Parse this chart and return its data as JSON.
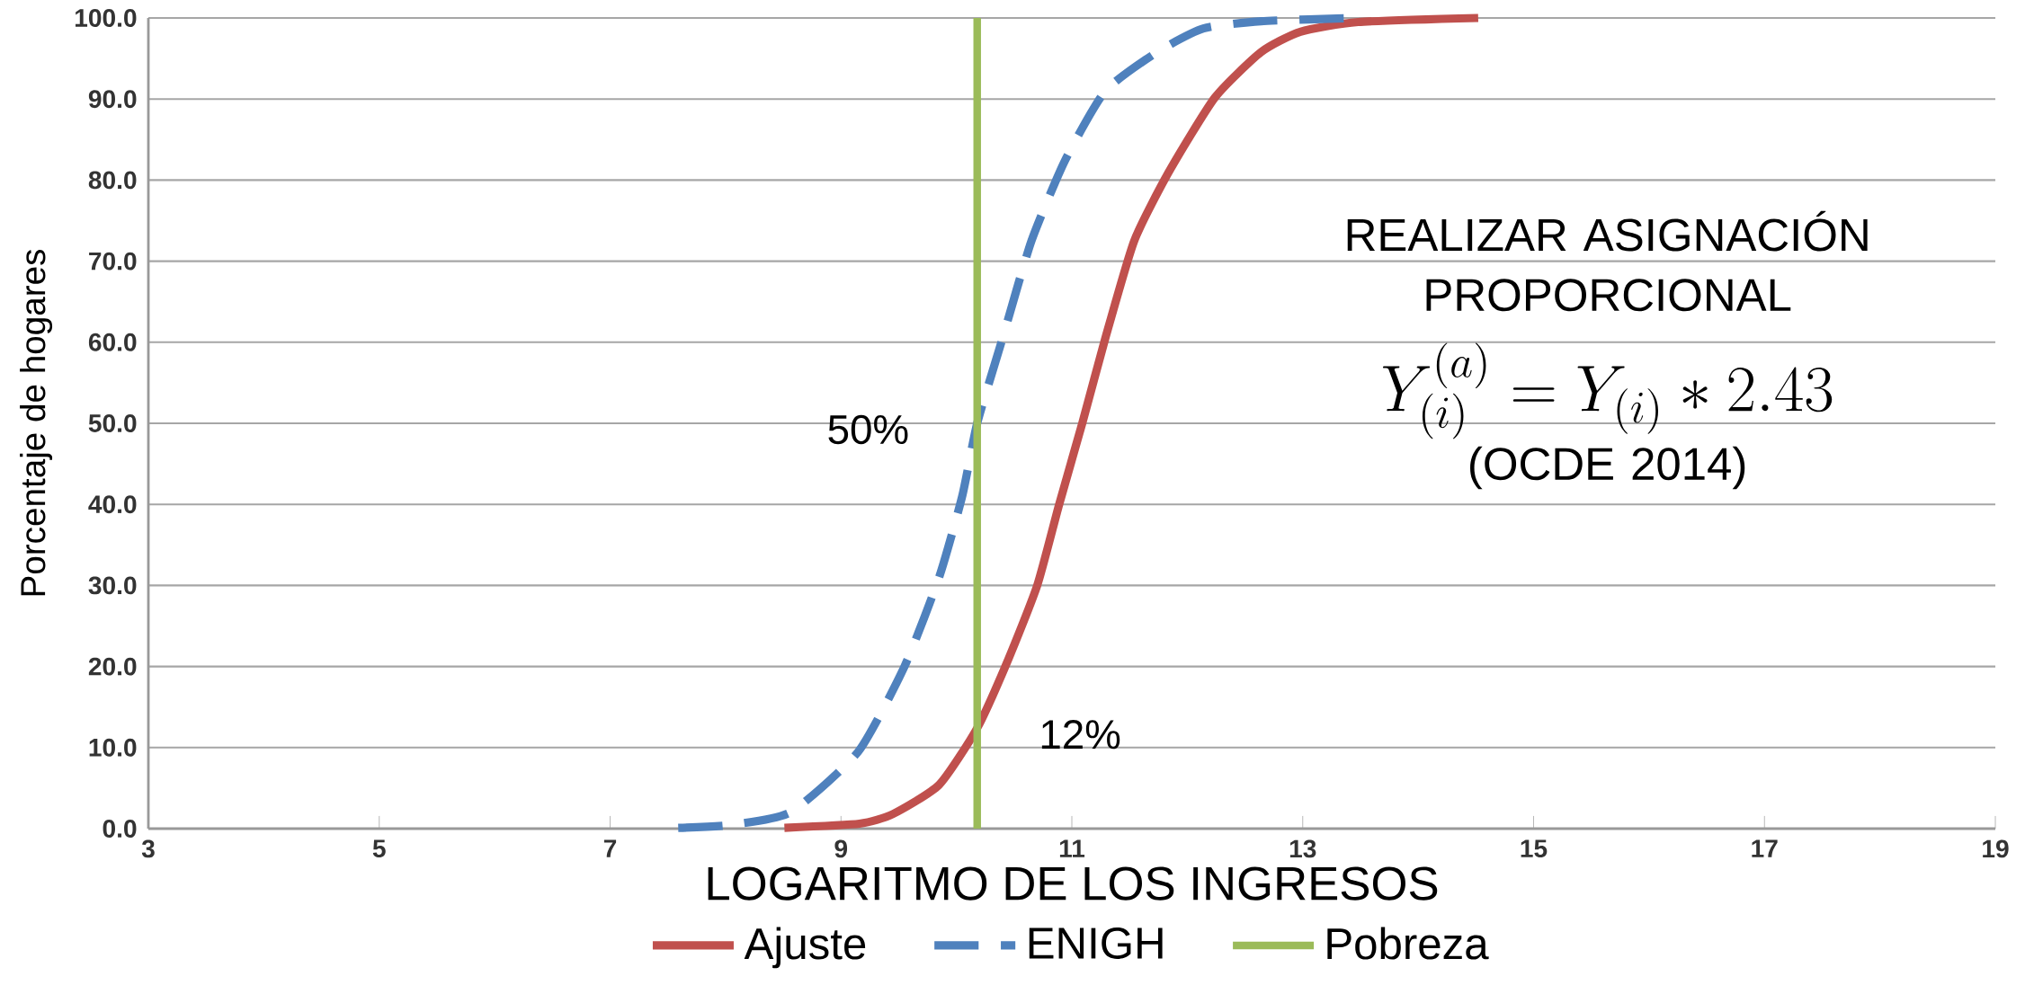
{
  "chart_data": {
    "type": "line",
    "xlabel": "LOGARITMO DE LOS INGRESOS",
    "ylabel": "Porcentaje de hogares",
    "xlim": [
      3,
      19
    ],
    "xticks": [
      3,
      5,
      7,
      9,
      11,
      13,
      15,
      17,
      19
    ],
    "ylim": [
      0,
      100
    ],
    "yticks": [
      {
        "value": 0,
        "label": "0.0"
      },
      {
        "value": 10,
        "label": "10.0"
      },
      {
        "value": 20,
        "label": "20.0"
      },
      {
        "value": 30,
        "label": "30.0"
      },
      {
        "value": 40,
        "label": "40.0"
      },
      {
        "value": 50,
        "label": "50.0"
      },
      {
        "value": 60,
        "label": "60.0"
      },
      {
        "value": 70,
        "label": "70.0"
      },
      {
        "value": 80,
        "label": "80.0"
      },
      {
        "value": 90,
        "label": "90.0"
      },
      {
        "value": 100,
        "label": "100.0"
      }
    ],
    "grid": "y",
    "legend": "bottom",
    "series": [
      {
        "name": "Ajuste",
        "color": "#c0504d",
        "line_style": "solid",
        "x": [
          8.51,
          9.16,
          9.45,
          9.85,
          10.18,
          10.45,
          10.7,
          10.89,
          11.09,
          11.29,
          11.54,
          11.84,
          12.24,
          12.64,
          12.98,
          13.48,
          14.52
        ],
        "values": [
          0.1,
          0.6,
          1.8,
          5.4,
          12.4,
          20.9,
          30,
          40,
          50,
          60.5,
          72.5,
          81,
          90.2,
          95.8,
          98.3,
          99.5,
          100
        ]
      },
      {
        "name": "ENIGH",
        "color": "#4f81bd",
        "line_style": "dashed",
        "x": [
          7.59,
          8.01,
          8.56,
          9.15,
          9.55,
          9.85,
          10.05,
          10.18,
          10.4,
          10.65,
          10.94,
          11.29,
          11.74,
          12.14,
          12.64,
          13.48
        ],
        "values": [
          0.1,
          0.4,
          2,
          9.5,
          20,
          31,
          41,
          50,
          60.5,
          72.5,
          82.4,
          91,
          95.8,
          98.7,
          99.6,
          100
        ]
      },
      {
        "name": "Pobreza",
        "color": "#9bbb59",
        "line_style": "solid",
        "x": [
          10.18,
          10.18
        ],
        "values": [
          0,
          100
        ]
      }
    ],
    "annotations": [
      "REALIZAR ASIGNACIÓN PROPORCIONAL",
      {
        "text": "Y_{(i)}^{(a)} = Y_{(i)} * 2.43"
      },
      "(OCDE 2014)",
      {
        "text": "50%",
        "x": 10.18,
        "y": 50
      },
      {
        "text": "12%",
        "x": 10.18,
        "y": 12.4
      }
    ]
  }
}
